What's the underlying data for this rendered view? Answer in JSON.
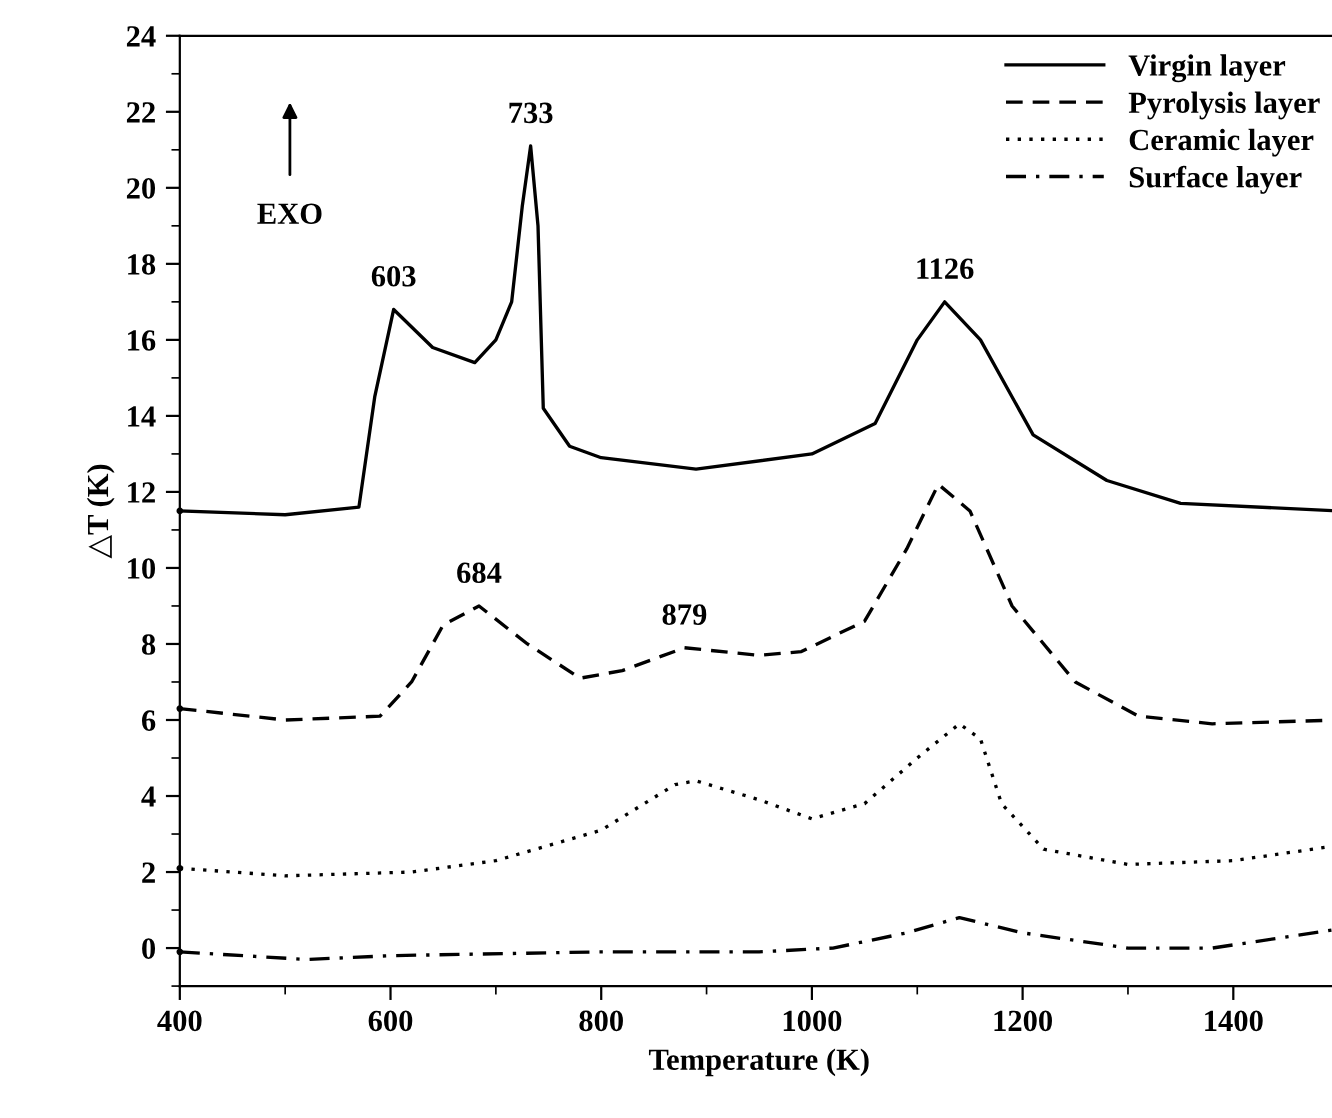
{
  "chart_data": {
    "type": "line",
    "xlabel": "Temperature (K)",
    "ylabel": "△T (K)",
    "xlim": [
      400,
      1500
    ],
    "xticks": [
      400,
      600,
      800,
      1000,
      1200,
      1400
    ],
    "ylim": [
      -1,
      24
    ],
    "yticks": [
      0,
      2,
      4,
      6,
      8,
      10,
      12,
      14,
      16,
      18,
      20,
      22,
      24
    ],
    "grid": false,
    "legend": "top right",
    "marker": "none",
    "series": [
      {
        "name": "Virgin layer",
        "color": "#000000",
        "line_style": "solid",
        "x": [
          400,
          500,
          570,
          585,
          603,
          640,
          680,
          700,
          715,
          725,
          733,
          740,
          745,
          770,
          800,
          890,
          1000,
          1060,
          1100,
          1126,
          1160,
          1210,
          1280,
          1350,
          1500
        ],
        "values": [
          11.5,
          11.4,
          11.6,
          14.5,
          16.8,
          15.8,
          15.4,
          16.0,
          17.0,
          19.5,
          21.1,
          19.0,
          14.2,
          13.2,
          12.9,
          12.6,
          13.0,
          13.8,
          16.0,
          17.0,
          16.0,
          13.5,
          12.3,
          11.7,
          11.5
        ]
      },
      {
        "name": "Pyrolysis layer",
        "color": "#000000",
        "line_style": "dashed",
        "x": [
          400,
          500,
          590,
          620,
          650,
          684,
          730,
          780,
          820,
          879,
          950,
          990,
          1050,
          1090,
          1120,
          1150,
          1190,
          1250,
          1310,
          1380,
          1500
        ],
        "values": [
          6.3,
          6.0,
          6.1,
          7.0,
          8.5,
          9.0,
          8.0,
          7.1,
          7.3,
          7.9,
          7.7,
          7.8,
          8.6,
          10.5,
          12.2,
          11.5,
          9.0,
          7.0,
          6.1,
          5.9,
          6.0
        ]
      },
      {
        "name": "Ceramic layer",
        "color": "#000000",
        "line_style": "dotted",
        "x": [
          400,
          500,
          620,
          700,
          800,
          870,
          890,
          950,
          1000,
          1050,
          1100,
          1140,
          1160,
          1180,
          1220,
          1300,
          1400,
          1500
        ],
        "values": [
          2.1,
          1.9,
          2.0,
          2.3,
          3.1,
          4.3,
          4.4,
          3.9,
          3.4,
          3.8,
          5.0,
          5.9,
          5.5,
          3.8,
          2.6,
          2.2,
          2.3,
          2.7
        ]
      },
      {
        "name": "Surface layer",
        "color": "#000000",
        "line_style": "dashdot",
        "x": [
          400,
          520,
          600,
          800,
          950,
          1020,
          1090,
          1140,
          1200,
          1300,
          1380,
          1500
        ],
        "values": [
          -0.1,
          -0.3,
          -0.2,
          -0.1,
          -0.1,
          0.0,
          0.4,
          0.8,
          0.4,
          0.0,
          0.0,
          0.5
        ]
      }
    ],
    "annotations": [
      "EXO",
      {
        "text": "603",
        "x": 603,
        "y": 16.8
      },
      {
        "text": "733",
        "x": 733,
        "y": 21.1
      },
      {
        "text": "1126",
        "x": 1126,
        "y": 17.0
      },
      {
        "text": "684",
        "x": 684,
        "y": 9.0
      },
      {
        "text": "879",
        "x": 879,
        "y": 7.9
      }
    ]
  }
}
